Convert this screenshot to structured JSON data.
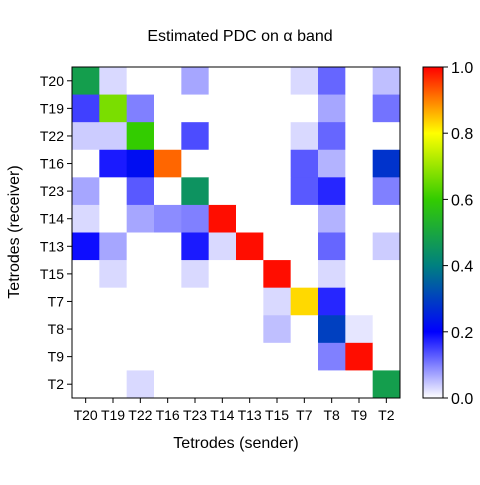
{
  "chart_data": {
    "type": "heatmap",
    "title": "Estimated PDC on  α  band",
    "xlabel": "Tetrodes (sender)",
    "ylabel": "Tetrodes (receiver)",
    "x_categories": [
      "T20",
      "T19",
      "T22",
      "T16",
      "T23",
      "T14",
      "T13",
      "T15",
      "T7",
      "T8",
      "T9",
      "T2"
    ],
    "y_categories": [
      "T20",
      "T19",
      "T22",
      "T16",
      "T23",
      "T14",
      "T13",
      "T15",
      "T7",
      "T8",
      "T9",
      "T2"
    ],
    "values": [
      [
        0.48,
        0.03,
        0.0,
        0.0,
        0.07,
        0.0,
        0.0,
        0.0,
        0.03,
        0.12,
        0.0,
        0.05
      ],
      [
        0.15,
        0.67,
        0.1,
        0.0,
        0.0,
        0.0,
        0.0,
        0.0,
        0.0,
        0.07,
        0.0,
        0.11
      ],
      [
        0.04,
        0.04,
        0.6,
        0.0,
        0.14,
        0.0,
        0.0,
        0.0,
        0.03,
        0.12,
        0.0,
        0.0
      ],
      [
        0.0,
        0.18,
        0.22,
        0.92,
        0.0,
        0.0,
        0.0,
        0.0,
        0.13,
        0.06,
        0.0,
        0.28
      ],
      [
        0.07,
        0.0,
        0.13,
        0.0,
        0.45,
        0.0,
        0.0,
        0.0,
        0.13,
        0.17,
        0.0,
        0.1
      ],
      [
        0.03,
        0.0,
        0.07,
        0.09,
        0.1,
        0.99,
        0.0,
        0.0,
        0.0,
        0.06,
        0.0,
        0.0
      ],
      [
        0.19,
        0.07,
        0.0,
        0.0,
        0.18,
        0.03,
        0.99,
        0.0,
        0.0,
        0.12,
        0.0,
        0.04
      ],
      [
        0.0,
        0.03,
        0.0,
        0.0,
        0.03,
        0.0,
        0.0,
        0.99,
        0.0,
        0.03,
        0.0,
        0.0
      ],
      [
        0.0,
        0.0,
        0.0,
        0.0,
        0.0,
        0.0,
        0.0,
        0.03,
        0.83,
        0.17,
        0.0,
        0.0
      ],
      [
        0.0,
        0.0,
        0.0,
        0.0,
        0.0,
        0.0,
        0.0,
        0.05,
        0.0,
        0.3,
        0.02,
        0.0
      ],
      [
        0.0,
        0.0,
        0.0,
        0.0,
        0.0,
        0.0,
        0.0,
        0.0,
        0.0,
        0.1,
        0.99,
        0.0
      ],
      [
        0.0,
        0.0,
        0.03,
        0.0,
        0.0,
        0.0,
        0.0,
        0.0,
        0.0,
        0.0,
        0.0,
        0.48
      ]
    ],
    "color_range": [
      0.0,
      1.0
    ],
    "colorbar_ticks": [
      "0.0",
      "0.2",
      "0.4",
      "0.6",
      "0.8",
      "1.0"
    ],
    "colormap_stops": [
      "#ffffff",
      "#0000ff",
      "#008080",
      "#33cc00",
      "#ffff00",
      "#ff0000"
    ]
  }
}
